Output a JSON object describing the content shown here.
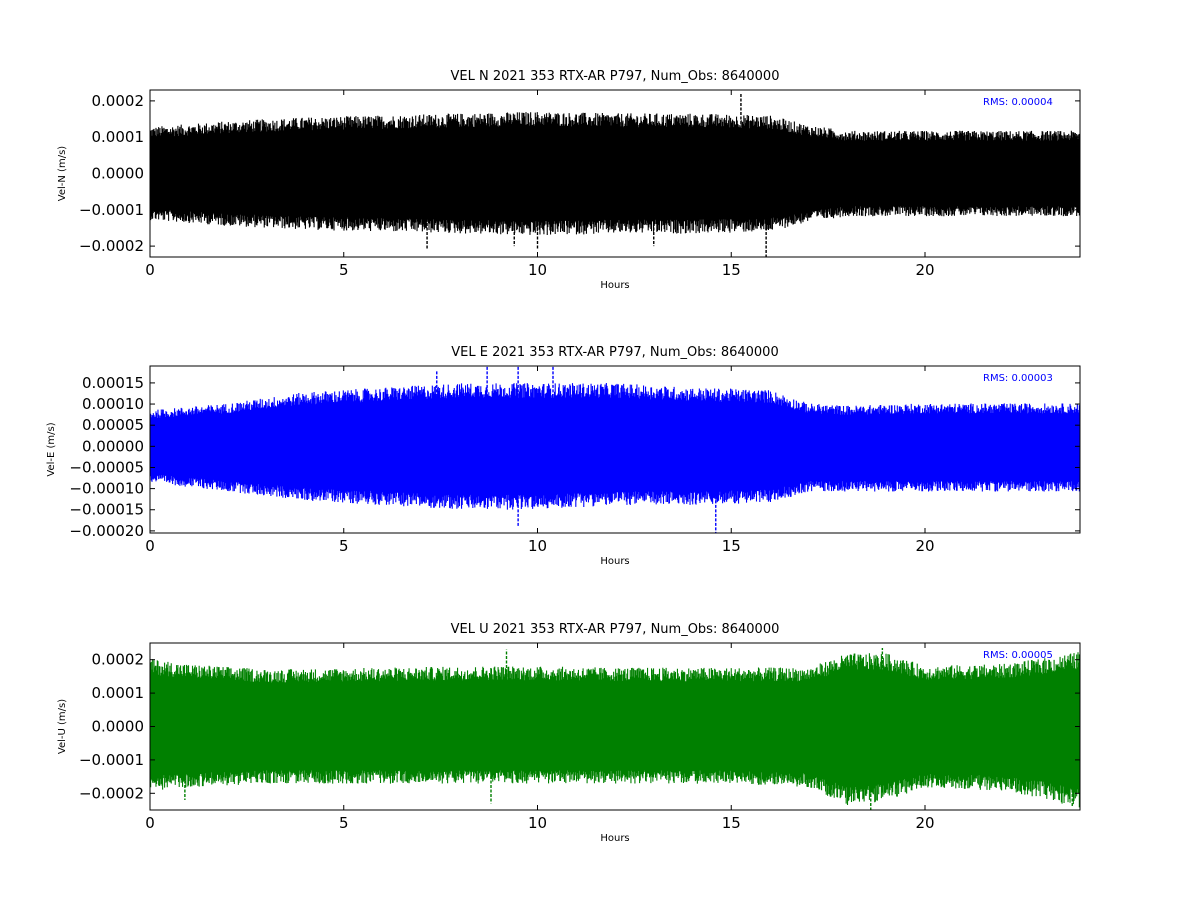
{
  "chart_data": [
    {
      "type": "line",
      "title": "VEL N 2021 353 RTX-AR  P797, Num_Obs: 8640000",
      "xlabel": "Hours",
      "ylabel": "Vel-N (m/s)",
      "xlim": [
        0,
        24
      ],
      "ylim": [
        -0.00023,
        0.00023
      ],
      "xticks": [
        0,
        5,
        10,
        15,
        20
      ],
      "xtick_labels": [
        "0",
        "5",
        "10",
        "15",
        "20"
      ],
      "yticks": [
        -0.0002,
        -0.0001,
        0.0,
        0.0001,
        0.0002
      ],
      "ytick_labels": [
        "−0.0002",
        "−0.0001",
        "0.0000",
        "0.0001",
        "0.0002"
      ],
      "annotation": "RMS:  0.00004",
      "annotation_color": "#0000ff",
      "color": "#000000",
      "grid": false,
      "envelope": {
        "x": [
          0,
          2,
          4,
          6,
          8,
          10,
          12,
          14,
          16,
          17,
          18,
          20,
          22,
          24
        ],
        "y_upper": [
          0.00012,
          0.000135,
          0.000145,
          0.00015,
          0.000155,
          0.00016,
          0.000155,
          0.000155,
          0.00015,
          0.000125,
          0.00011,
          0.00011,
          0.00011,
          0.00011
        ],
        "y_lower": [
          -0.00012,
          -0.000135,
          -0.000145,
          -0.00015,
          -0.000155,
          -0.00016,
          -0.000155,
          -0.000155,
          -0.00015,
          -0.000125,
          -0.00011,
          -0.00011,
          -0.00011,
          -0.00011
        ]
      },
      "spikes": [
        {
          "x": 15.25,
          "y": 0.00022
        },
        {
          "x": 15.9,
          "y": -0.00023
        },
        {
          "x": 7.15,
          "y": -0.00021
        },
        {
          "x": 10.0,
          "y": -0.00021
        },
        {
          "x": 9.4,
          "y": -0.0002
        },
        {
          "x": 13.0,
          "y": -0.0002
        }
      ]
    },
    {
      "type": "line",
      "title": "VEL E 2021 353 RTX-AR  P797, Num_Obs: 8640000",
      "xlabel": "Hours",
      "ylabel": "Vel-E (m/s)",
      "xlim": [
        0,
        24
      ],
      "ylim": [
        -0.000205,
        0.00019
      ],
      "xticks": [
        0,
        5,
        10,
        15,
        20
      ],
      "xtick_labels": [
        "0",
        "5",
        "10",
        "15",
        "20"
      ],
      "yticks": [
        -0.0002,
        -0.00015,
        -0.0001,
        -5e-05,
        0.0,
        5e-05,
        0.0001,
        0.00015
      ],
      "ytick_labels": [
        "−0.00020",
        "−0.00015",
        "−0.00010",
        "−0.00005",
        "0.00000",
        "0.00005",
        "0.00010",
        "0.00015"
      ],
      "annotation": "RMS:  0.00003",
      "annotation_color": "#0000ff",
      "color": "#0000ff",
      "grid": false,
      "envelope": {
        "x": [
          0,
          2,
          4,
          6,
          8,
          10,
          12,
          14,
          16,
          17,
          18,
          20,
          22,
          24
        ],
        "y_upper": [
          8e-05,
          9.5e-05,
          0.00012,
          0.00013,
          0.00014,
          0.00014,
          0.00014,
          0.00013,
          0.000125,
          9.5e-05,
          9e-05,
          9.5e-05,
          9.5e-05,
          9.5e-05
        ],
        "y_lower": [
          -8e-05,
          -0.0001,
          -0.00012,
          -0.00013,
          -0.00014,
          -0.00014,
          -0.00013,
          -0.00013,
          -0.000125,
          -0.0001,
          -0.0001,
          -0.0001,
          -0.0001,
          -0.0001
        ]
      },
      "spikes": [
        {
          "x": 14.6,
          "y": -0.000205
        },
        {
          "x": 9.5,
          "y": -0.00019
        },
        {
          "x": 8.7,
          "y": 0.00019
        },
        {
          "x": 9.5,
          "y": 0.00019
        },
        {
          "x": 10.4,
          "y": 0.00019
        },
        {
          "x": 7.4,
          "y": 0.00018
        }
      ]
    },
    {
      "type": "line",
      "title": "VEL U 2021 353 RTX-AR  P797, Num_Obs: 8640000",
      "xlabel": "Hours",
      "ylabel": "Vel-U (m/s)",
      "xlim": [
        0,
        24
      ],
      "ylim": [
        -0.00025,
        0.00025
      ],
      "xticks": [
        0,
        5,
        10,
        15,
        20
      ],
      "xtick_labels": [
        "0",
        "5",
        "10",
        "15",
        "20"
      ],
      "yticks": [
        -0.0002,
        -0.0001,
        0.0,
        0.0001,
        0.0002
      ],
      "ytick_labels": [
        "−0.0002",
        "−0.0001",
        "0.0000",
        "0.0001",
        "0.0002"
      ],
      "annotation": "RMS:  0.00005",
      "annotation_color": "#0000ff",
      "color": "#008000",
      "grid": false,
      "envelope": {
        "x": [
          0,
          1,
          3,
          6,
          9,
          12,
          15,
          17,
          18,
          19,
          20,
          22,
          23,
          24
        ],
        "y_upper": [
          0.00019,
          0.000175,
          0.00016,
          0.000165,
          0.00017,
          0.000165,
          0.000165,
          0.000165,
          0.000205,
          0.000205,
          0.00017,
          0.000175,
          0.00019,
          0.00021
        ],
        "y_lower": [
          -0.00018,
          -0.00017,
          -0.00016,
          -0.00016,
          -0.00016,
          -0.00016,
          -0.00016,
          -0.00017,
          -0.00022,
          -0.00021,
          -0.00017,
          -0.00018,
          -0.0002,
          -0.00023
        ]
      },
      "spikes": [
        {
          "x": 18.9,
          "y": 0.000235
        },
        {
          "x": 9.2,
          "y": 0.00023
        },
        {
          "x": 18.6,
          "y": -0.00025
        },
        {
          "x": 8.8,
          "y": -0.00023
        },
        {
          "x": 23.8,
          "y": -0.00024
        },
        {
          "x": 0.9,
          "y": -0.00022
        }
      ]
    }
  ]
}
